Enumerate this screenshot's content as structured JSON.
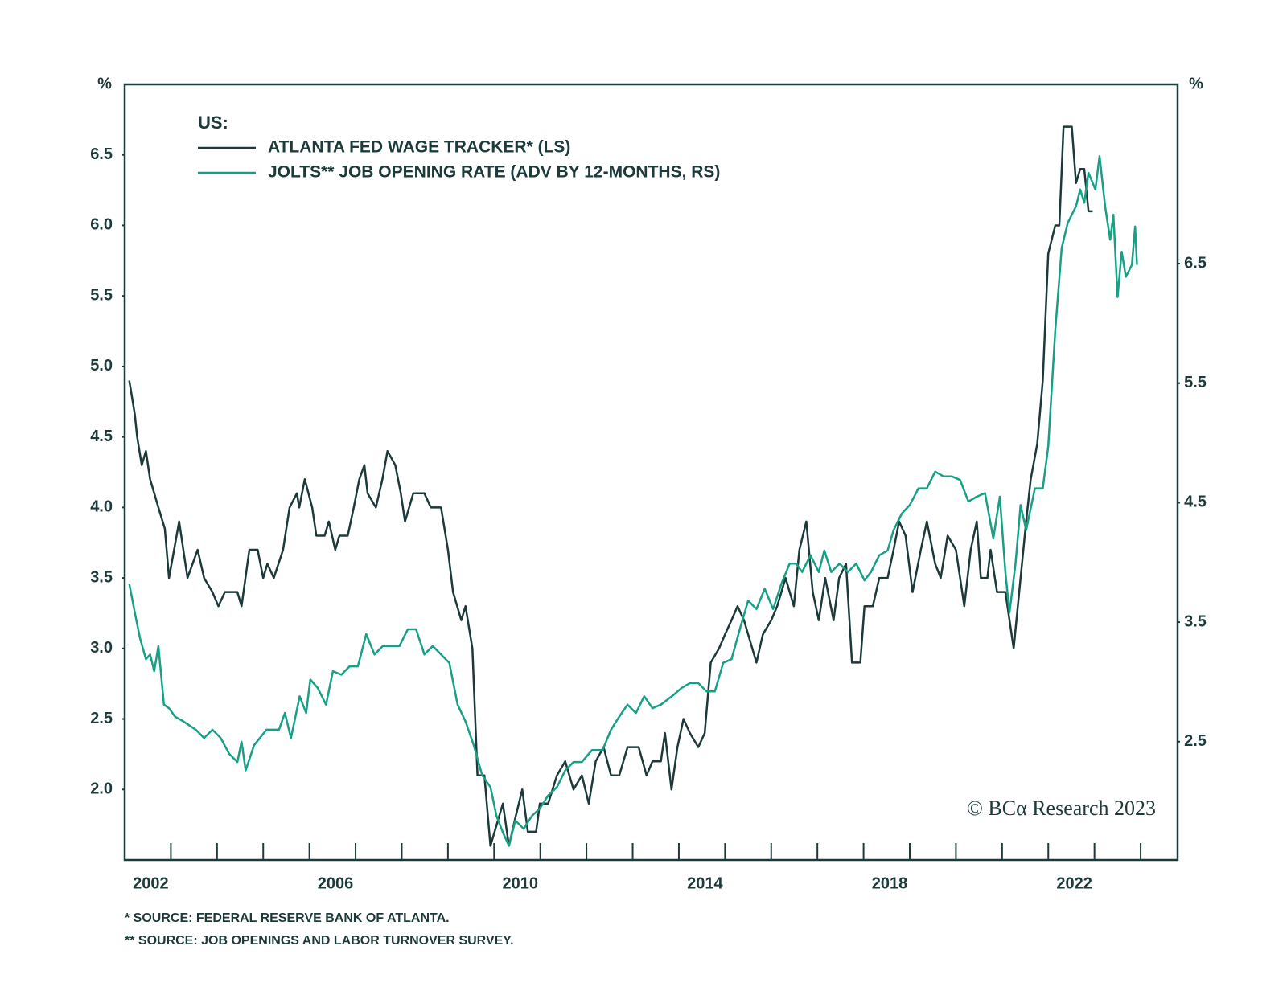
{
  "chart_data": {
    "type": "line",
    "legend_title": "US:",
    "annotations": [
      "© BCα Research 2023"
    ],
    "footnotes": [
      "* SOURCE: FEDERAL RESERVE BANK OF ATLANTA.",
      "** SOURCE: JOB OPENINGS AND LABOR TURNOVER SURVEY."
    ],
    "ylabel": "%",
    "y2label": "%",
    "xlim": [
      2001.0,
      2023.8
    ],
    "xticks": [
      2002,
      2006,
      2010,
      2014,
      2018,
      2022
    ],
    "xminor_ticks": [
      2003,
      2004,
      2005,
      2007,
      2008,
      2009,
      2011,
      2012,
      2013,
      2015,
      2016,
      2017,
      2019,
      2020,
      2021,
      2023
    ],
    "ylim": [
      1.5,
      7.0
    ],
    "yticks": [
      {
        "value": 2,
        "label": "2.0"
      },
      2.5,
      {
        "value": 3,
        "label": "3.0"
      },
      3.5,
      {
        "value": 4,
        "label": "4.0"
      },
      4.5,
      {
        "value": 5,
        "label": "5.0"
      },
      5.5,
      {
        "value": 6,
        "label": "6.0"
      },
      6.5
    ],
    "y2lim": [
      1.51,
      8.0
    ],
    "y2ticks": [
      2.5,
      3.5,
      4.5,
      5.5,
      6.5
    ],
    "series": [
      {
        "name": "ATLANTA FED WAGE TRACKER* (LS)",
        "color": "#1d3a3a",
        "axis": "y",
        "x": [
          2001.1,
          2001.22,
          2001.27,
          2001.37,
          2001.46,
          2001.55,
          2001.73,
          2001.87,
          2001.96,
          2002.18,
          2002.36,
          2002.58,
          2002.72,
          2002.9,
          2003.03,
          2003.17,
          2003.44,
          2003.53,
          2003.7,
          2003.88,
          2004.0,
          2004.09,
          2004.23,
          2004.43,
          2004.57,
          2004.73,
          2004.78,
          2004.9,
          2005.06,
          2005.15,
          2005.33,
          2005.42,
          2005.56,
          2005.65,
          2005.83,
          2005.96,
          2006.08,
          2006.19,
          2006.26,
          2006.44,
          2006.58,
          2006.69,
          2006.86,
          2006.98,
          2007.07,
          2007.25,
          2007.49,
          2007.63,
          2007.85,
          2008.0,
          2008.11,
          2008.29,
          2008.38,
          2008.53,
          2008.64,
          2008.79,
          2008.92,
          2009.01,
          2009.19,
          2009.32,
          2009.46,
          2009.61,
          2009.73,
          2009.91,
          2009.99,
          2010.17,
          2010.36,
          2010.54,
          2010.72,
          2010.9,
          2011.05,
          2011.2,
          2011.37,
          2011.53,
          2011.71,
          2011.89,
          2012.13,
          2012.3,
          2012.43,
          2012.61,
          2012.7,
          2012.84,
          2012.97,
          2013.1,
          2013.24,
          2013.42,
          2013.56,
          2013.69,
          2013.87,
          2014.0,
          2014.14,
          2014.27,
          2014.41,
          2014.5,
          2014.68,
          2014.82,
          2015.0,
          2015.13,
          2015.31,
          2015.49,
          2015.61,
          2015.76,
          2015.9,
          2016.03,
          2016.17,
          2016.35,
          2016.47,
          2016.62,
          2016.75,
          2016.93,
          2017.02,
          2017.2,
          2017.34,
          2017.52,
          2017.65,
          2017.77,
          2017.91,
          2018.06,
          2018.24,
          2018.37,
          2018.55,
          2018.67,
          2018.82,
          2019.0,
          2019.18,
          2019.32,
          2019.45,
          2019.54,
          2019.68,
          2019.75,
          2019.89,
          2020.07,
          2020.25,
          2020.4,
          2020.52,
          2020.62,
          2020.76,
          2020.88,
          2021.0,
          2021.15,
          2021.24,
          2021.33,
          2021.51,
          2021.6,
          2021.69,
          2021.78,
          2021.87,
          2021.96
        ],
        "values": [
          4.9,
          4.66,
          4.5,
          4.3,
          4.4,
          4.2,
          4.0,
          3.85,
          3.5,
          3.9,
          3.5,
          3.7,
          3.5,
          3.4,
          3.3,
          3.4,
          3.4,
          3.3,
          3.7,
          3.7,
          3.5,
          3.6,
          3.5,
          3.7,
          4.0,
          4.1,
          4.0,
          4.2,
          4.0,
          3.8,
          3.8,
          3.9,
          3.7,
          3.8,
          3.8,
          4.0,
          4.2,
          4.3,
          4.1,
          4.0,
          4.2,
          4.4,
          4.3,
          4.1,
          3.9,
          4.1,
          4.1,
          4.0,
          4.0,
          3.7,
          3.4,
          3.2,
          3.3,
          3.0,
          2.1,
          2.1,
          1.6,
          1.7,
          1.9,
          1.6,
          1.8,
          2.0,
          1.7,
          1.7,
          1.9,
          1.9,
          2.1,
          2.2,
          2.0,
          2.1,
          1.9,
          2.2,
          2.3,
          2.1,
          2.1,
          2.3,
          2.3,
          2.1,
          2.2,
          2.2,
          2.4,
          2.0,
          2.3,
          2.5,
          2.4,
          2.3,
          2.4,
          2.9,
          3.0,
          3.1,
          3.2,
          3.3,
          3.2,
          3.1,
          2.9,
          3.1,
          3.2,
          3.3,
          3.5,
          3.3,
          3.7,
          3.9,
          3.4,
          3.2,
          3.5,
          3.2,
          3.5,
          3.6,
          2.9,
          2.9,
          3.3,
          3.3,
          3.5,
          3.5,
          3.7,
          3.9,
          3.8,
          3.4,
          3.7,
          3.9,
          3.6,
          3.5,
          3.8,
          3.7,
          3.3,
          3.7,
          3.9,
          3.5,
          3.5,
          3.7,
          3.4,
          3.4,
          3.0,
          3.5,
          3.9,
          4.2,
          4.45,
          4.9,
          5.8,
          6.0,
          6.0,
          6.7,
          6.7,
          6.3,
          6.4,
          6.4,
          6.1,
          6.1
        ]
      },
      {
        "name": "JOLTS** JOB OPENING RATE (ADV BY 12-MONTHS, RS)",
        "color": "#17a085",
        "axis": "y2",
        "x": [
          2001.1,
          2001.22,
          2001.33,
          2001.46,
          2001.55,
          2001.64,
          2001.73,
          2001.85,
          2001.96,
          2002.09,
          2002.27,
          2002.54,
          2002.72,
          2002.9,
          2003.08,
          2003.26,
          2003.44,
          2003.53,
          2003.62,
          2003.8,
          2004.07,
          2004.34,
          2004.47,
          2004.6,
          2004.79,
          2004.93,
          2005.02,
          2005.18,
          2005.36,
          2005.51,
          2005.69,
          2005.87,
          2006.05,
          2006.23,
          2006.41,
          2006.59,
          2006.77,
          2006.95,
          2007.13,
          2007.31,
          2007.49,
          2007.67,
          2007.85,
          2008.03,
          2008.21,
          2008.38,
          2008.56,
          2008.74,
          2008.92,
          2009.05,
          2009.19,
          2009.32,
          2009.46,
          2009.64,
          2009.82,
          2009.99,
          2010.17,
          2010.36,
          2010.54,
          2010.72,
          2010.9,
          2011.12,
          2011.35,
          2011.53,
          2011.71,
          2011.89,
          2012.07,
          2012.25,
          2012.43,
          2012.61,
          2012.85,
          2013.06,
          2013.24,
          2013.42,
          2013.6,
          2013.78,
          2013.96,
          2014.14,
          2014.32,
          2014.5,
          2014.68,
          2014.86,
          2015.04,
          2015.22,
          2015.4,
          2015.54,
          2015.67,
          2015.85,
          2016.03,
          2016.15,
          2016.3,
          2016.48,
          2016.66,
          2016.84,
          2017.02,
          2017.16,
          2017.34,
          2017.52,
          2017.65,
          2017.83,
          2018.0,
          2018.19,
          2018.37,
          2018.55,
          2018.73,
          2018.91,
          2019.09,
          2019.27,
          2019.45,
          2019.63,
          2019.81,
          2019.95,
          2020.07,
          2020.16,
          2020.29,
          2020.4,
          2020.52,
          2020.71,
          2020.88,
          2021.0,
          2021.15,
          2021.29,
          2021.42,
          2021.6,
          2021.69,
          2021.78,
          2021.87,
          2022.02,
          2022.11,
          2022.23,
          2022.34,
          2022.41,
          2022.5,
          2022.59,
          2022.68,
          2022.81,
          2022.88,
          2022.92
        ],
        "values": [
          3.82,
          3.58,
          3.37,
          3.19,
          3.23,
          3.09,
          3.3,
          2.81,
          2.78,
          2.71,
          2.67,
          2.6,
          2.53,
          2.6,
          2.53,
          2.4,
          2.33,
          2.5,
          2.26,
          2.47,
          2.6,
          2.6,
          2.74,
          2.53,
          2.88,
          2.74,
          3.02,
          2.95,
          2.81,
          3.09,
          3.06,
          3.13,
          3.13,
          3.4,
          3.23,
          3.3,
          3.3,
          3.3,
          3.44,
          3.44,
          3.23,
          3.3,
          3.23,
          3.16,
          2.81,
          2.67,
          2.47,
          2.22,
          2.12,
          1.88,
          1.74,
          1.63,
          1.84,
          1.77,
          1.88,
          1.94,
          2.05,
          2.12,
          2.26,
          2.33,
          2.33,
          2.43,
          2.43,
          2.6,
          2.71,
          2.81,
          2.74,
          2.88,
          2.78,
          2.81,
          2.88,
          2.95,
          2.99,
          2.99,
          2.92,
          2.92,
          3.16,
          3.19,
          3.44,
          3.68,
          3.61,
          3.78,
          3.61,
          3.82,
          3.99,
          3.99,
          3.92,
          4.06,
          3.92,
          4.1,
          3.92,
          3.99,
          3.92,
          3.99,
          3.85,
          3.92,
          4.06,
          4.1,
          4.27,
          4.41,
          4.48,
          4.62,
          4.62,
          4.76,
          4.72,
          4.72,
          4.69,
          4.51,
          4.55,
          4.58,
          4.2,
          4.55,
          3.92,
          3.58,
          3.99,
          4.48,
          4.27,
          4.62,
          4.62,
          4.97,
          5.94,
          6.63,
          6.84,
          6.98,
          7.12,
          7.01,
          7.26,
          7.12,
          7.4,
          6.98,
          6.7,
          6.91,
          6.22,
          6.6,
          6.39,
          6.49,
          6.81,
          6.49
        ]
      }
    ]
  }
}
